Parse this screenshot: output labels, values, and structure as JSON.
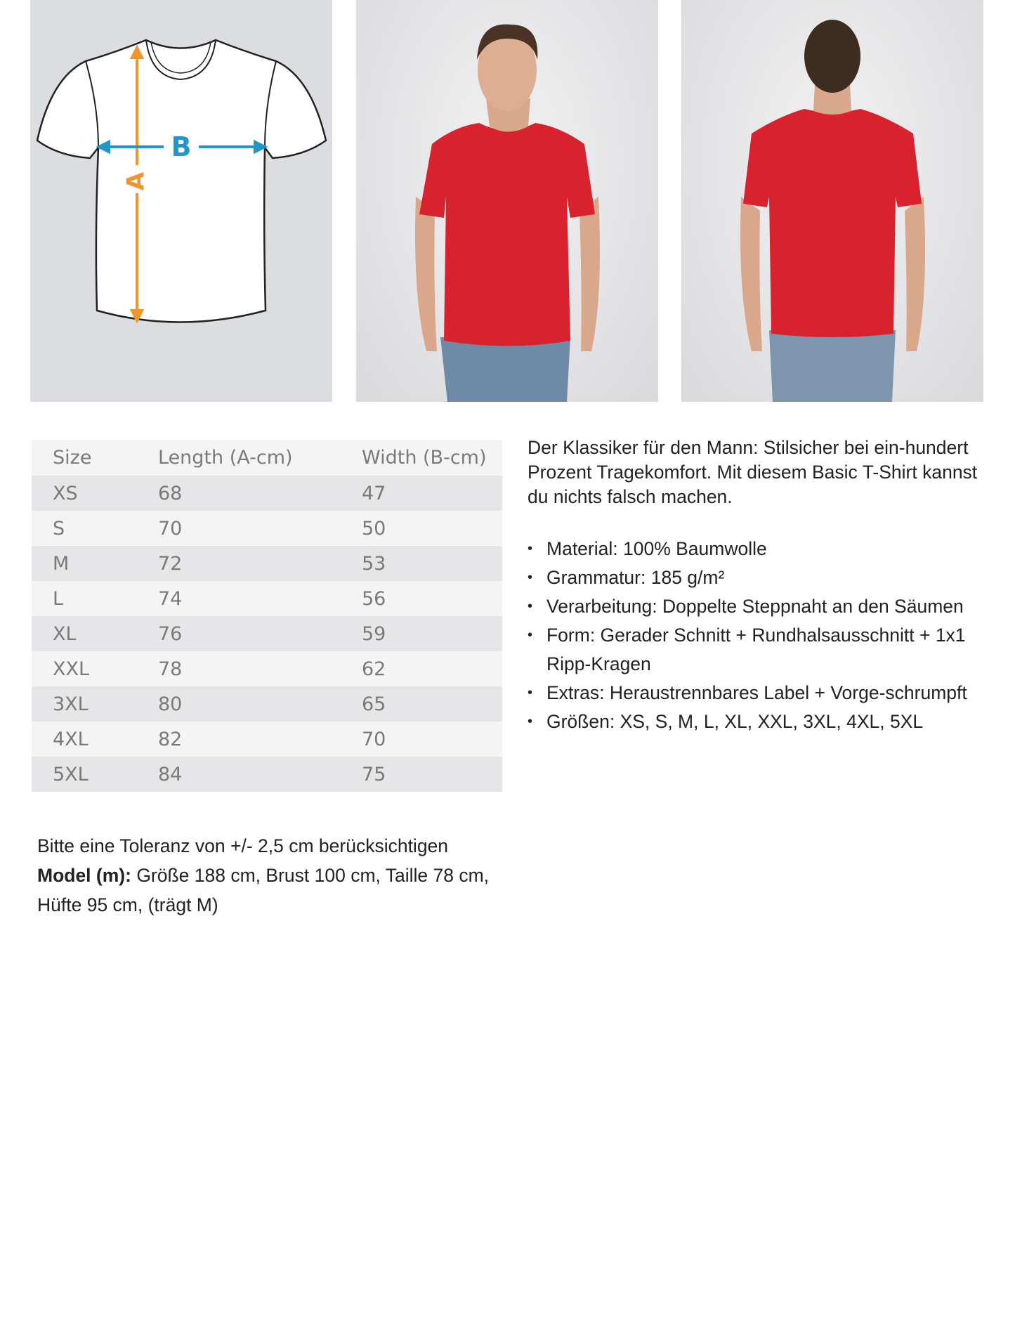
{
  "diagram": {
    "label_a": "A",
    "label_b": "B",
    "color_a": "#f0952e",
    "color_b": "#2196c9"
  },
  "photos": [
    {
      "name": "model-front-photo"
    },
    {
      "name": "model-back-photo"
    }
  ],
  "shirt_color": "#d8232f",
  "size_table": {
    "headers": [
      "Size",
      "Length (A-cm)",
      "Width (B-cm)"
    ],
    "rows": [
      [
        "XS",
        "68",
        "47"
      ],
      [
        "S",
        "70",
        "50"
      ],
      [
        "M",
        "72",
        "53"
      ],
      [
        "L",
        "74",
        "56"
      ],
      [
        "XL",
        "76",
        "59"
      ],
      [
        "XXL",
        "78",
        "62"
      ],
      [
        "3XL",
        "80",
        "65"
      ],
      [
        "4XL",
        "82",
        "70"
      ],
      [
        "5XL",
        "84",
        "75"
      ]
    ]
  },
  "description": {
    "intro": "Der Klassiker für den Mann: Stilsicher bei ein-hundert Prozent Tragekomfort. Mit diesem Basic T-Shirt kannst du nichts falsch machen.",
    "bullets": [
      "Material: 100% Baumwolle",
      "Grammatur: 185 g/m²",
      "Verarbeitung: Doppelte Steppnaht an den Säumen",
      "Form: Gerader Schnitt + Rundhalsausschnitt + 1x1 Ripp-Kragen",
      "Extras: Heraustrennbares Label + Vorge-schrumpft",
      "Größen: XS, S, M, L, XL, XXL, 3XL, 4XL, 5XL"
    ]
  },
  "notes": {
    "tolerance": "Bitte eine Toleranz von +/- 2,5 cm berücksichtigen",
    "model_label": "Model (m):",
    "model_text": " Größe 188 cm, Brust 100 cm, Taille 78 cm, Hüfte 95 cm, (trägt M)"
  }
}
